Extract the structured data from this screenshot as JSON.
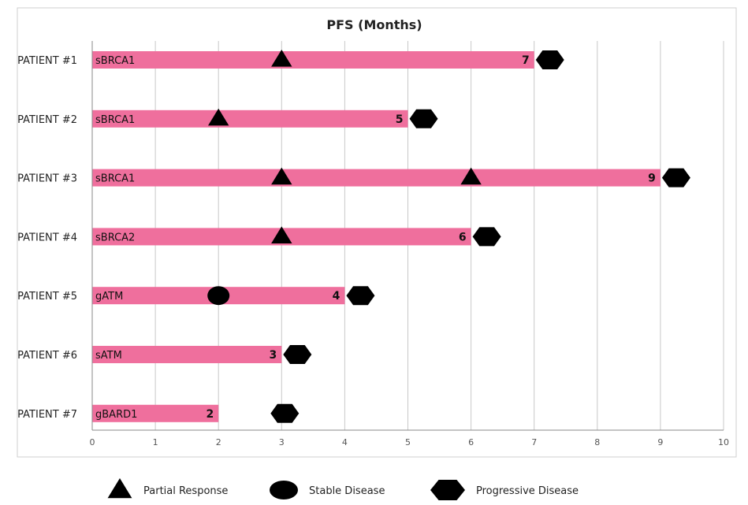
{
  "chart_data": {
    "type": "bar",
    "orientation": "horizontal",
    "title": "PFS (Months)",
    "xlim": [
      0,
      10
    ],
    "x_ticks": [
      "0",
      "1",
      "2",
      "3",
      "4",
      "5",
      "6",
      "7",
      "8",
      "9",
      "10"
    ],
    "grid": "vertical",
    "bar_color": "#ef6f9d",
    "patients": [
      {
        "label": "PATIENT #1",
        "mutation": "sBRCA1",
        "pfs": 7,
        "pfs_label": "7",
        "partial_response": [
          3
        ],
        "stable_disease": [],
        "progressive_disease": 7.25
      },
      {
        "label": "PATIENT #2",
        "mutation": "sBRCA1",
        "pfs": 5,
        "pfs_label": "5",
        "partial_response": [
          2
        ],
        "stable_disease": [],
        "progressive_disease": 5.25
      },
      {
        "label": "PATIENT #3",
        "mutation": "sBRCA1",
        "pfs": 9,
        "pfs_label": "9",
        "partial_response": [
          3,
          6
        ],
        "stable_disease": [],
        "progressive_disease": 9.25
      },
      {
        "label": "PATIENT #4",
        "mutation": "sBRCA2",
        "pfs": 6,
        "pfs_label": "6",
        "partial_response": [
          3
        ],
        "stable_disease": [],
        "progressive_disease": 6.25
      },
      {
        "label": "PATIENT #5",
        "mutation": "gATM",
        "pfs": 4,
        "pfs_label": "4",
        "partial_response": [],
        "stable_disease": [
          2
        ],
        "progressive_disease": 4.25
      },
      {
        "label": "PATIENT #6",
        "mutation": "sATM",
        "pfs": 3,
        "pfs_label": "3",
        "partial_response": [],
        "stable_disease": [],
        "progressive_disease": 3.25
      },
      {
        "label": "PATIENT #7",
        "mutation": "gBARD1",
        "pfs": 2,
        "pfs_label": "2",
        "partial_response": [],
        "stable_disease": [],
        "progressive_disease": 3.05
      }
    ],
    "legend": {
      "position": "bottom",
      "items": [
        {
          "label": "Partial Response",
          "marker": "triangle"
        },
        {
          "label": "Stable Disease",
          "marker": "circle"
        },
        {
          "label": "Progressive Disease",
          "marker": "hexagon"
        }
      ]
    }
  }
}
